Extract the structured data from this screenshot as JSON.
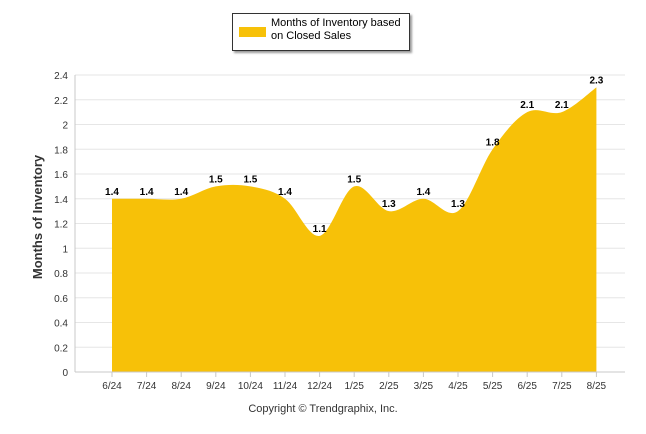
{
  "chart_data": {
    "type": "area",
    "categories": [
      "6/24",
      "7/24",
      "8/24",
      "9/24",
      "10/24",
      "11/24",
      "12/24",
      "1/25",
      "2/25",
      "3/25",
      "4/25",
      "5/25",
      "6/25",
      "7/25",
      "8/25"
    ],
    "series": [
      {
        "name": "Months of Inventory based on Closed Sales",
        "values": [
          1.4,
          1.4,
          1.4,
          1.5,
          1.5,
          1.4,
          1.1,
          1.5,
          1.3,
          1.4,
          1.3,
          1.8,
          2.1,
          2.1,
          2.3
        ],
        "data_labels": [
          "1.4",
          "1.4",
          "1.4",
          "1.5",
          "1.5",
          "1.4",
          "1.1",
          "1.5",
          "1.3",
          "1.4",
          "1.3",
          "1.8",
          "2.1",
          "2.1",
          "2.3"
        ]
      }
    ],
    "ylabel": "Months of Inventory",
    "ylim": [
      0,
      2.4
    ],
    "yticks": [
      0,
      0.2,
      0.4,
      0.6,
      0.8,
      1,
      1.2,
      1.4,
      1.6,
      1.8,
      2,
      2.2,
      2.4
    ],
    "ytick_labels": [
      "0",
      "0.2",
      "0.4",
      "0.6",
      "0.8",
      "1",
      "1.2",
      "1.4",
      "1.6",
      "1.8",
      "2",
      "2.2",
      "2.4"
    ],
    "grid": true,
    "legend_position": "top-center"
  },
  "legend": {
    "label": "Months of Inventory based on Closed Sales"
  },
  "colors": {
    "fill": "#f7c108",
    "grid": "#e6e6e6",
    "axis": "#c8c8c8",
    "text": "#333333"
  },
  "footer": {
    "copyright": "Copyright © Trendgraphix, Inc."
  }
}
